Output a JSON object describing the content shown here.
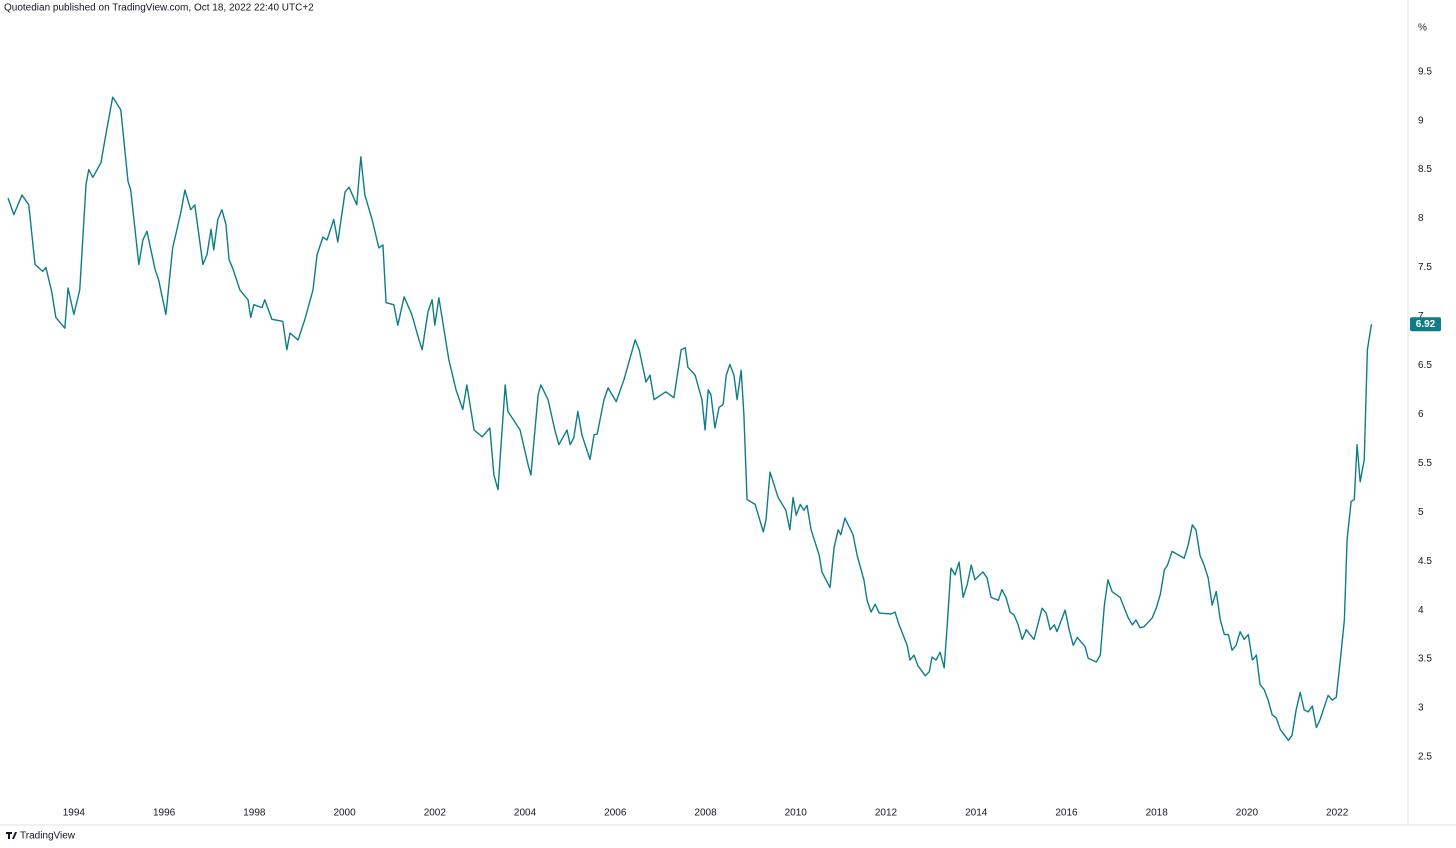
{
  "header": {
    "text": "Quotedian published on TradingView.com, Oct 18, 2022 22:40 UTC+2"
  },
  "footer": {
    "logo": "TradingView"
  },
  "chart_data": {
    "type": "line",
    "unit": "%",
    "color": "#0e7d87",
    "grid": false,
    "xlim": [
      1992.54,
      2023.57
    ],
    "ylim": [
      1.805,
      10.13
    ],
    "xticks": [
      1994,
      1996,
      1998,
      2000,
      2002,
      2004,
      2006,
      2008,
      2010,
      2012,
      2014,
      2016,
      2018,
      2020,
      2022
    ],
    "yticks": [
      2.5,
      3,
      3.5,
      4,
      4.5,
      5,
      5.5,
      6,
      6.5,
      7,
      7.5,
      8,
      8.5,
      9,
      9.5
    ],
    "x": [
      1992.54,
      1992.67,
      1992.85,
      1993,
      1993.14,
      1993.31,
      1993.38,
      1993.51,
      1993.6,
      1993.8,
      1993.87,
      1994,
      1994.13,
      1994.27,
      1994.33,
      1994.42,
      1994.6,
      1994.69,
      1994.86,
      1995.04,
      1995.2,
      1995.26,
      1995.44,
      1995.53,
      1995.62,
      1995.8,
      1995.88,
      1996.04,
      1996.19,
      1996.37,
      1996.46,
      1996.59,
      1996.68,
      1996.86,
      1996.95,
      1997.04,
      1997.1,
      1997.19,
      1997.28,
      1997.37,
      1997.44,
      1997.53,
      1997.68,
      1997.86,
      1997.92,
      1997.99,
      1998.17,
      1998.23,
      1998.39,
      1998.63,
      1998.72,
      1998.79,
      1998.97,
      1999.12,
      1999.3,
      1999.39,
      1999.52,
      1999.61,
      1999.76,
      1999.85,
      2000.01,
      2000.1,
      2000.27,
      2000.36,
      2000.45,
      2000.61,
      2000.76,
      2000.85,
      2000.92,
      2001.09,
      2001.18,
      2001.32,
      2001.49,
      2001.65,
      2001.72,
      2001.85,
      2001.94,
      2002,
      2002.09,
      2002.31,
      2002.47,
      2002.62,
      2002.71,
      2002.87,
      2003.05,
      2003.22,
      2003.31,
      2003.4,
      2003.56,
      2003.62,
      2003.89,
      2004.07,
      2004.13,
      2004.29,
      2004.35,
      2004.51,
      2004.66,
      2004.75,
      2004.93,
      2005,
      2005.08,
      2005.17,
      2005.26,
      2005.44,
      2005.53,
      2005.6,
      2005.75,
      2005.84,
      2006.02,
      2006.19,
      2006.35,
      2006.44,
      2006.53,
      2006.68,
      2006.77,
      2006.86,
      2007.12,
      2007.3,
      2007.46,
      2007.55,
      2007.61,
      2007.77,
      2007.92,
      2007.99,
      2008.06,
      2008.12,
      2008.21,
      2008.3,
      2008.39,
      2008.46,
      2008.54,
      2008.63,
      2008.7,
      2008.79,
      2008.85,
      2008.92,
      2009.1,
      2009.28,
      2009.34,
      2009.43,
      2009.61,
      2009.78,
      2009.87,
      2009.94,
      2010.01,
      2010.1,
      2010.18,
      2010.25,
      2010.34,
      2010.52,
      2010.58,
      2010.76,
      2010.85,
      2010.94,
      2011,
      2011.09,
      2011.27,
      2011.36,
      2011.51,
      2011.58,
      2011.67,
      2011.76,
      2011.85,
      2012.11,
      2012.2,
      2012.29,
      2012.47,
      2012.53,
      2012.62,
      2012.71,
      2012.87,
      2012.96,
      2013.02,
      2013.11,
      2013.2,
      2013.29,
      2013.35,
      2013.44,
      2013.53,
      2013.62,
      2013.71,
      2013.8,
      2013.89,
      2013.97,
      2014.15,
      2014.24,
      2014.33,
      2014.49,
      2014.57,
      2014.66,
      2014.75,
      2014.84,
      2014.93,
      2015.02,
      2015.11,
      2015.28,
      2015.46,
      2015.55,
      2015.64,
      2015.73,
      2015.79,
      2015.97,
      2016.06,
      2016.15,
      2016.24,
      2016.41,
      2016.48,
      2016.66,
      2016.75,
      2016.84,
      2016.92,
      2017.01,
      2017.19,
      2017.37,
      2017.46,
      2017.54,
      2017.63,
      2017.72,
      2017.9,
      2017.99,
      2018.08,
      2018.17,
      2018.24,
      2018.34,
      2018.61,
      2018.7,
      2018.79,
      2018.87,
      2018.96,
      2019.05,
      2019.14,
      2019.23,
      2019.32,
      2019.41,
      2019.5,
      2019.59,
      2019.67,
      2019.76,
      2019.85,
      2019.94,
      2020.03,
      2020.12,
      2020.21,
      2020.29,
      2020.38,
      2020.47,
      2020.56,
      2020.65,
      2020.74,
      2020.92,
      2021,
      2021.09,
      2021.18,
      2021.27,
      2021.36,
      2021.45,
      2021.54,
      2021.62,
      2021.8,
      2021.89,
      2021.98,
      2022.07,
      2022.16,
      2022.22,
      2022.31,
      2022.38,
      2022.44,
      2022.51,
      2022.6,
      2022.67,
      2022.76
    ],
    "values": [
      8.21,
      8.04,
      8.24,
      8.14,
      7.53,
      7.46,
      7.5,
      7.25,
      6.99,
      6.88,
      7.29,
      7.02,
      7.27,
      8.35,
      8.5,
      8.42,
      8.57,
      8.81,
      9.24,
      9.11,
      8.38,
      8.29,
      7.53,
      7.78,
      7.87,
      7.48,
      7.37,
      7.02,
      7.7,
      8.06,
      8.29,
      8.09,
      8.14,
      7.53,
      7.63,
      7.89,
      7.68,
      7.99,
      8.09,
      7.94,
      7.58,
      7.48,
      7.27,
      7.17,
      6.99,
      7.12,
      7.09,
      7.17,
      6.97,
      6.95,
      6.66,
      6.83,
      6.76,
      6.97,
      7.27,
      7.63,
      7.81,
      7.78,
      7.99,
      7.76,
      8.27,
      8.32,
      8.14,
      8.63,
      8.24,
      7.99,
      7.7,
      7.73,
      7.14,
      7.12,
      6.91,
      7.2,
      7.02,
      6.76,
      6.66,
      7.05,
      7.17,
      6.91,
      7.19,
      6.56,
      6.25,
      6.05,
      6.3,
      5.84,
      5.77,
      5.86,
      5.38,
      5.23,
      6.3,
      6.03,
      5.84,
      5.48,
      5.38,
      6.2,
      6.3,
      6.15,
      5.84,
      5.69,
      5.84,
      5.69,
      5.76,
      6.03,
      5.79,
      5.54,
      5.79,
      5.8,
      6.15,
      6.27,
      6.13,
      6.35,
      6.61,
      6.76,
      6.66,
      6.33,
      6.4,
      6.15,
      6.23,
      6.17,
      6.66,
      6.68,
      6.48,
      6.4,
      6.15,
      5.84,
      6.25,
      6.2,
      5.86,
      6.07,
      6.1,
      6.4,
      6.51,
      6.4,
      6.15,
      6.45,
      6.0,
      5.13,
      5.08,
      4.8,
      4.92,
      5.41,
      5.15,
      5.02,
      4.82,
      5.15,
      4.97,
      5.08,
      5.02,
      5.07,
      4.82,
      4.56,
      4.39,
      4.23,
      4.64,
      4.82,
      4.77,
      4.94,
      4.77,
      4.56,
      4.31,
      4.1,
      3.98,
      4.06,
      3.97,
      3.96,
      3.98,
      3.85,
      3.64,
      3.49,
      3.54,
      3.43,
      3.33,
      3.37,
      3.52,
      3.49,
      3.57,
      3.41,
      3.8,
      4.43,
      4.36,
      4.49,
      4.13,
      4.26,
      4.46,
      4.31,
      4.39,
      4.33,
      4.13,
      4.1,
      4.21,
      4.13,
      3.98,
      3.95,
      3.85,
      3.7,
      3.8,
      3.7,
      4.02,
      3.97,
      3.8,
      3.85,
      3.78,
      4.0,
      3.8,
      3.64,
      3.72,
      3.63,
      3.51,
      3.47,
      3.54,
      4.05,
      4.31,
      4.19,
      4.13,
      3.92,
      3.85,
      3.9,
      3.82,
      3.83,
      3.92,
      4.02,
      4.16,
      4.41,
      4.46,
      4.6,
      4.53,
      4.67,
      4.87,
      4.82,
      4.56,
      4.46,
      4.33,
      4.05,
      4.19,
      3.9,
      3.75,
      3.75,
      3.59,
      3.64,
      3.78,
      3.7,
      3.75,
      3.49,
      3.54,
      3.24,
      3.19,
      3.08,
      2.93,
      2.9,
      2.78,
      2.67,
      2.72,
      2.98,
      3.16,
      2.98,
      2.96,
      3.02,
      2.8,
      2.88,
      3.13,
      3.08,
      3.11,
      3.49,
      3.9,
      4.72,
      5.11,
      5.13,
      5.69,
      5.31,
      5.54,
      6.66,
      6.92
    ]
  }
}
